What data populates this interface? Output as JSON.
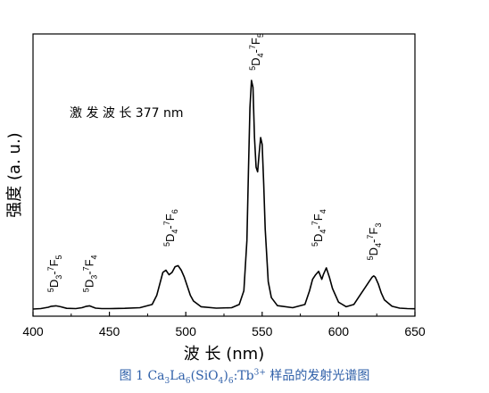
{
  "chart_data": {
    "type": "line",
    "xlabel": "波 长 (nm)",
    "ylabel": "强度 (a. u.)",
    "xlim": [
      400,
      650
    ],
    "ylim": [
      0,
      1.09
    ],
    "xticks": [
      400,
      450,
      500,
      550,
      600,
      650
    ],
    "annotation": "激 发 波 长 377 nm",
    "peak_labels": [
      {
        "text": "5D3-7F5",
        "x": 414,
        "y": 0.05
      },
      {
        "text": "5D3-7F4",
        "x": 437,
        "y": 0.05
      },
      {
        "text": "5D4-7F6",
        "x": 490,
        "y": 0.25
      },
      {
        "text": "5D4-7F5",
        "x": 546,
        "y": 1.02
      },
      {
        "text": "5D4-7F4",
        "x": 587,
        "y": 0.25
      },
      {
        "text": "5D4-7F3",
        "x": 623,
        "y": 0.19
      }
    ],
    "series": [
      {
        "x": [
          400,
          405,
          410,
          412,
          415,
          418,
          422,
          428,
          432,
          435,
          437,
          439,
          441,
          445,
          450,
          460,
          470,
          478,
          481,
          483,
          485,
          487,
          489,
          491,
          493,
          495,
          497,
          499,
          501,
          503,
          505,
          510,
          520,
          530,
          535,
          538,
          540,
          541,
          542,
          543,
          544,
          545,
          546,
          547,
          548,
          549,
          550,
          551,
          552,
          554,
          556,
          560,
          570,
          578,
          581,
          583,
          585,
          587,
          589,
          590,
          592,
          594,
          596,
          600,
          605,
          610,
          614,
          618,
          620,
          622,
          623,
          624,
          626,
          628,
          630,
          635,
          640,
          645,
          650
        ],
        "y": [
          0.0,
          0.002,
          0.008,
          0.012,
          0.014,
          0.01,
          0.003,
          0.002,
          0.006,
          0.012,
          0.014,
          0.009,
          0.004,
          0.002,
          0.002,
          0.003,
          0.006,
          0.02,
          0.06,
          0.11,
          0.16,
          0.17,
          0.15,
          0.16,
          0.185,
          0.19,
          0.17,
          0.14,
          0.1,
          0.06,
          0.035,
          0.01,
          0.004,
          0.006,
          0.02,
          0.08,
          0.3,
          0.6,
          0.88,
          1.0,
          0.97,
          0.75,
          0.62,
          0.6,
          0.68,
          0.75,
          0.72,
          0.55,
          0.35,
          0.12,
          0.05,
          0.015,
          0.006,
          0.02,
          0.08,
          0.13,
          0.15,
          0.165,
          0.13,
          0.15,
          0.18,
          0.14,
          0.09,
          0.03,
          0.01,
          0.02,
          0.06,
          0.1,
          0.12,
          0.14,
          0.145,
          0.14,
          0.11,
          0.07,
          0.04,
          0.012,
          0.004,
          0.002,
          0.001
        ]
      }
    ]
  },
  "caption": {
    "prefix": "图 1 Ca",
    "ca_sub": "3",
    "la": "La",
    "la_sub": "6",
    "sio": "(SiO",
    "o_sub": "4",
    "close": ")",
    "close_sub": "6",
    "tb": ":Tb",
    "tb_sup": "3+",
    "suffix": " 样品的发射光谱图"
  }
}
